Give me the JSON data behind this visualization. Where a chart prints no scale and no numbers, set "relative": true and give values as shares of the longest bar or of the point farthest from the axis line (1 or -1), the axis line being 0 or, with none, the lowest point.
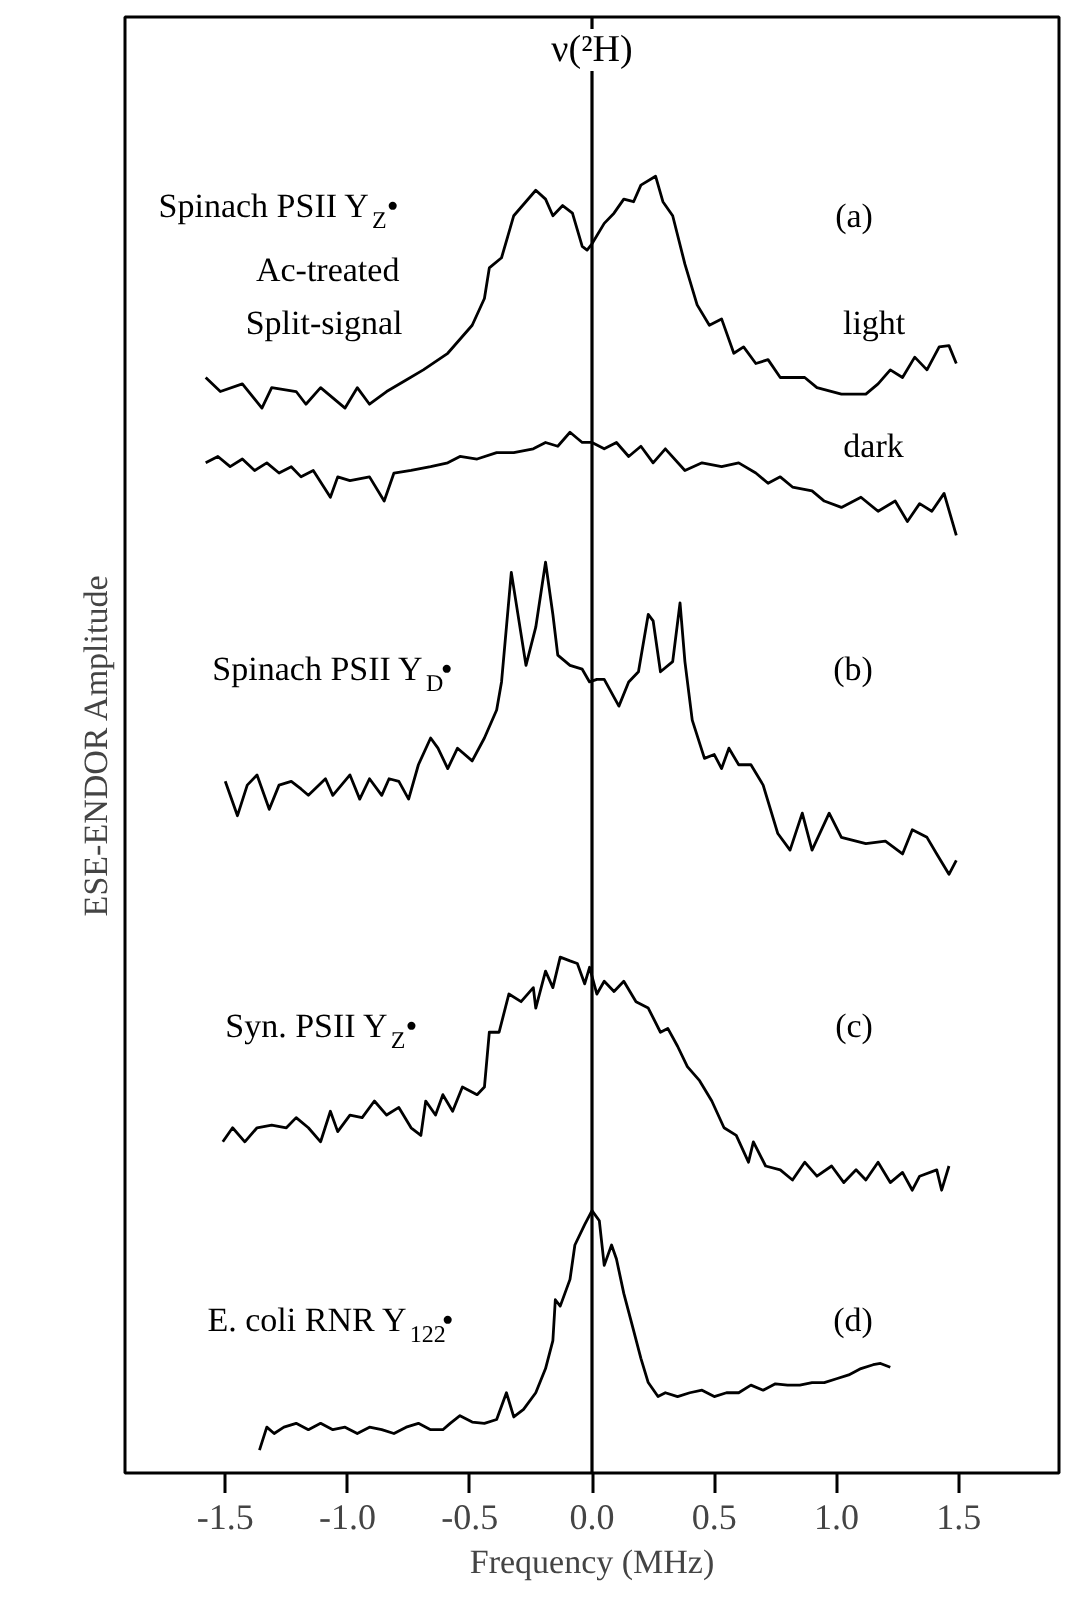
{
  "chart_data": {
    "type": "line",
    "relative": true,
    "xlabel": "Frequency (MHz)",
    "ylabel": "ESE-ENDOR Amplitude",
    "xlim": [
      -1.91,
      1.91
    ],
    "xticks": [
      -1.5,
      {
        "value": -1,
        "label": "-1.0"
      },
      -0.5,
      {
        "value": 0,
        "label": "0.0"
      },
      0.5,
      {
        "value": 1,
        "label": "1.0"
      },
      1.5
    ],
    "grid": false,
    "marker": "none",
    "line_style": "solid",
    "ref_lines": [
      {
        "axis": "x",
        "value": 0,
        "label": "ν(²H)",
        "color": "#000000"
      }
    ],
    "annotations": [
      "Spinach PSII Y$_{Z}$•",
      "Ac-treated",
      "Split-signal",
      "(a)",
      "(b)",
      "(c)",
      "(d)"
    ],
    "series": [
      {
        "name": "light",
        "color": "#000000",
        "x": [
          -1.58,
          -1.52,
          -1.43,
          -1.35,
          -1.31,
          -1.21,
          -1.17,
          -1.11,
          -1.01,
          -0.96,
          -0.91,
          -0.84,
          -0.76,
          -0.69,
          -0.59,
          -0.49,
          -0.44,
          -0.42,
          -0.37,
          -0.32,
          -0.23,
          -0.19,
          -0.16,
          -0.12,
          -0.08,
          -0.04,
          -0.02,
          0.0,
          0.05,
          0.09,
          0.13,
          0.17,
          0.2,
          0.26,
          0.29,
          0.33,
          0.38,
          0.43,
          0.48,
          0.53,
          0.58,
          0.62,
          0.67,
          0.72,
          0.77,
          0.87,
          0.92,
          1.02,
          1.12,
          1.17,
          1.22,
          1.27,
          1.32,
          1.37,
          1.42,
          1.46,
          1.49
        ],
        "values": [
          0.842,
          0.831,
          0.837,
          0.818,
          0.834,
          0.831,
          0.821,
          0.834,
          0.818,
          0.834,
          0.821,
          0.831,
          0.84,
          0.848,
          0.861,
          0.883,
          0.904,
          0.928,
          0.936,
          0.969,
          0.989,
          0.982,
          0.969,
          0.977,
          0.971,
          0.945,
          0.942,
          0.947,
          0.963,
          0.971,
          0.982,
          0.98,
          0.993,
          1.0,
          0.98,
          0.969,
          0.931,
          0.899,
          0.883,
          0.888,
          0.861,
          0.866,
          0.853,
          0.856,
          0.842,
          0.842,
          0.834,
          0.829,
          0.829,
          0.837,
          0.848,
          0.842,
          0.858,
          0.848,
          0.866,
          0.867,
          0.853
        ]
      },
      {
        "name": "dark",
        "color": "#000000",
        "x": [
          -1.58,
          -1.53,
          -1.48,
          -1.43,
          -1.38,
          -1.33,
          -1.28,
          -1.23,
          -1.19,
          -1.14,
          -1.07,
          -1.04,
          -0.99,
          -0.91,
          -0.85,
          -0.81,
          -0.74,
          -0.66,
          -0.59,
          -0.54,
          -0.47,
          -0.39,
          -0.32,
          -0.24,
          -0.19,
          -0.14,
          -0.09,
          -0.04,
          0.0,
          0.05,
          0.1,
          0.15,
          0.2,
          0.25,
          0.3,
          0.38,
          0.45,
          0.53,
          0.6,
          0.67,
          0.72,
          0.77,
          0.82,
          0.9,
          0.95,
          1.02,
          1.1,
          1.17,
          1.24,
          1.29,
          1.34,
          1.39,
          1.44,
          1.49
        ],
        "values": [
          0.775,
          0.78,
          0.772,
          0.778,
          0.769,
          0.775,
          0.767,
          0.772,
          0.764,
          0.769,
          0.748,
          0.764,
          0.761,
          0.764,
          0.745,
          0.767,
          0.769,
          0.772,
          0.775,
          0.78,
          0.778,
          0.783,
          0.783,
          0.786,
          0.791,
          0.788,
          0.799,
          0.791,
          0.791,
          0.786,
          0.791,
          0.78,
          0.788,
          0.775,
          0.786,
          0.769,
          0.775,
          0.772,
          0.775,
          0.767,
          0.759,
          0.764,
          0.756,
          0.753,
          0.745,
          0.74,
          0.748,
          0.737,
          0.745,
          0.729,
          0.743,
          0.737,
          0.751,
          0.718
        ]
      },
      {
        "name": "Spinach PSII Y$_{D}$•",
        "color": "#000000",
        "x": [
          -1.5,
          -1.45,
          -1.41,
          -1.37,
          -1.32,
          -1.28,
          -1.23,
          -1.19,
          -1.16,
          -1.09,
          -1.06,
          -0.99,
          -0.95,
          -0.91,
          -0.86,
          -0.83,
          -0.79,
          -0.75,
          -0.71,
          -0.66,
          -0.63,
          -0.59,
          -0.55,
          -0.49,
          -0.44,
          -0.39,
          -0.37,
          -0.33,
          -0.27,
          -0.23,
          -0.19,
          -0.16,
          -0.14,
          -0.09,
          -0.04,
          -0.01,
          0.02,
          0.05,
          0.11,
          0.15,
          0.19,
          0.23,
          0.25,
          0.28,
          0.33,
          0.36,
          0.38,
          0.41,
          0.46,
          0.5,
          0.53,
          0.56,
          0.6,
          0.65,
          0.7,
          0.76,
          0.81,
          0.86,
          0.9,
          0.97,
          1.02,
          1.12,
          1.2,
          1.27,
          1.31,
          1.37,
          1.41,
          1.46,
          1.49
        ],
        "values": [
          0.525,
          0.498,
          0.522,
          0.53,
          0.503,
          0.522,
          0.525,
          0.519,
          0.514,
          0.527,
          0.514,
          0.53,
          0.511,
          0.527,
          0.514,
          0.527,
          0.525,
          0.511,
          0.538,
          0.559,
          0.551,
          0.535,
          0.551,
          0.541,
          0.559,
          0.581,
          0.603,
          0.689,
          0.616,
          0.646,
          0.697,
          0.656,
          0.624,
          0.616,
          0.613,
          0.603,
          0.605,
          0.605,
          0.584,
          0.603,
          0.611,
          0.656,
          0.651,
          0.611,
          0.619,
          0.665,
          0.619,
          0.573,
          0.543,
          0.546,
          0.535,
          0.551,
          0.538,
          0.538,
          0.522,
          0.484,
          0.471,
          0.5,
          0.471,
          0.5,
          0.481,
          0.476,
          0.478,
          0.468,
          0.487,
          0.481,
          0.468,
          0.452,
          0.463
        ]
      },
      {
        "name": "Syn. PSII Y$_{Z}$•",
        "color": "#000000",
        "x": [
          -1.51,
          -1.47,
          -1.42,
          -1.37,
          -1.31,
          -1.25,
          -1.21,
          -1.16,
          -1.11,
          -1.07,
          -1.04,
          -0.99,
          -0.94,
          -0.89,
          -0.84,
          -0.79,
          -0.74,
          -0.7,
          -0.68,
          -0.64,
          -0.61,
          -0.57,
          -0.53,
          -0.47,
          -0.44,
          -0.42,
          -0.38,
          -0.34,
          -0.29,
          -0.24,
          -0.23,
          -0.19,
          -0.16,
          -0.13,
          -0.09,
          -0.06,
          -0.03,
          -0.01,
          0.02,
          0.05,
          0.09,
          0.13,
          0.18,
          0.23,
          0.28,
          0.31,
          0.35,
          0.39,
          0.44,
          0.49,
          0.54,
          0.59,
          0.64,
          0.66,
          0.71,
          0.77,
          0.82,
          0.87,
          0.92,
          0.98,
          1.03,
          1.08,
          1.12,
          1.17,
          1.22,
          1.27,
          1.31,
          1.34,
          1.41,
          1.43,
          1.46
        ],
        "values": [
          0.242,
          0.253,
          0.242,
          0.253,
          0.255,
          0.253,
          0.261,
          0.253,
          0.242,
          0.266,
          0.25,
          0.263,
          0.261,
          0.274,
          0.263,
          0.269,
          0.253,
          0.247,
          0.274,
          0.263,
          0.279,
          0.266,
          0.285,
          0.279,
          0.285,
          0.328,
          0.328,
          0.358,
          0.352,
          0.363,
          0.347,
          0.376,
          0.363,
          0.387,
          0.384,
          0.382,
          0.366,
          0.379,
          0.358,
          0.368,
          0.36,
          0.368,
          0.352,
          0.347,
          0.328,
          0.331,
          0.317,
          0.301,
          0.29,
          0.274,
          0.253,
          0.247,
          0.226,
          0.242,
          0.223,
          0.22,
          0.212,
          0.226,
          0.215,
          0.223,
          0.21,
          0.22,
          0.212,
          0.226,
          0.21,
          0.218,
          0.204,
          0.215,
          0.22,
          0.204,
          0.223
        ]
      },
      {
        "name": "E. coli RNR Y$_{122}$•",
        "color": "#000000",
        "x": [
          -1.36,
          -1.33,
          -1.3,
          -1.26,
          -1.21,
          -1.16,
          -1.11,
          -1.06,
          -1.01,
          -0.96,
          -0.91,
          -0.86,
          -0.81,
          -0.76,
          -0.71,
          -0.66,
          -0.61,
          -0.58,
          -0.54,
          -0.49,
          -0.44,
          -0.39,
          -0.35,
          -0.32,
          -0.28,
          -0.23,
          -0.19,
          -0.16,
          -0.15,
          -0.13,
          -0.09,
          -0.07,
          -0.03,
          0.0,
          0.03,
          0.05,
          0.08,
          0.1,
          0.13,
          0.17,
          0.2,
          0.23,
          0.27,
          0.3,
          0.35,
          0.4,
          0.45,
          0.5,
          0.55,
          0.6,
          0.65,
          0.7,
          0.75,
          0.8,
          0.85,
          0.9,
          0.95,
          1.0,
          1.05,
          1.1,
          1.15,
          1.18,
          1.22
        ],
        "values": [
          0.0,
          0.018,
          0.013,
          0.018,
          0.021,
          0.016,
          0.021,
          0.016,
          0.018,
          0.013,
          0.018,
          0.016,
          0.013,
          0.018,
          0.021,
          0.016,
          0.016,
          0.021,
          0.027,
          0.022,
          0.021,
          0.024,
          0.045,
          0.026,
          0.032,
          0.045,
          0.064,
          0.086,
          0.118,
          0.113,
          0.134,
          0.161,
          0.177,
          0.188,
          0.18,
          0.145,
          0.161,
          0.15,
          0.123,
          0.094,
          0.072,
          0.053,
          0.042,
          0.045,
          0.042,
          0.045,
          0.047,
          0.042,
          0.045,
          0.045,
          0.051,
          0.047,
          0.052,
          0.051,
          0.051,
          0.053,
          0.053,
          0.056,
          0.059,
          0.064,
          0.067,
          0.068,
          0.065
        ]
      }
    ]
  }
}
